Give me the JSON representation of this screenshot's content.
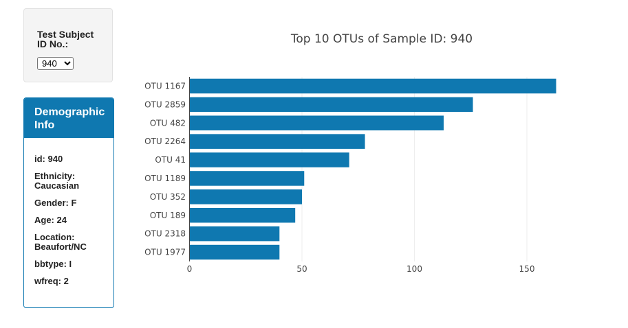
{
  "dropdown": {
    "label": "Test Subject ID No.:",
    "selected": "940"
  },
  "demographics": {
    "heading": "Demographic Info",
    "rows": [
      "id: 940",
      "Ethnicity: Caucasian",
      "Gender: F",
      "Age: 24",
      "Location: Beaufort/NC",
      "bbtype: I",
      "wfreq: 2"
    ]
  },
  "colors": {
    "accent": "#0f78b0",
    "bar": "#0f78b0"
  },
  "chart_data": {
    "type": "bar",
    "orientation": "horizontal",
    "title": "Top 10 OTUs of Sample ID: 940",
    "xlabel": "",
    "ylabel": "",
    "categories": [
      "OTU 1167",
      "OTU 2859",
      "OTU 482",
      "OTU 2264",
      "OTU 41",
      "OTU 1189",
      "OTU 352",
      "OTU 189",
      "OTU 2318",
      "OTU 1977"
    ],
    "values": [
      163,
      126,
      113,
      78,
      71,
      51,
      50,
      47,
      40,
      40
    ],
    "xlim": [
      0,
      170
    ],
    "xticks": [
      0,
      50,
      100,
      150
    ],
    "grid": true
  }
}
